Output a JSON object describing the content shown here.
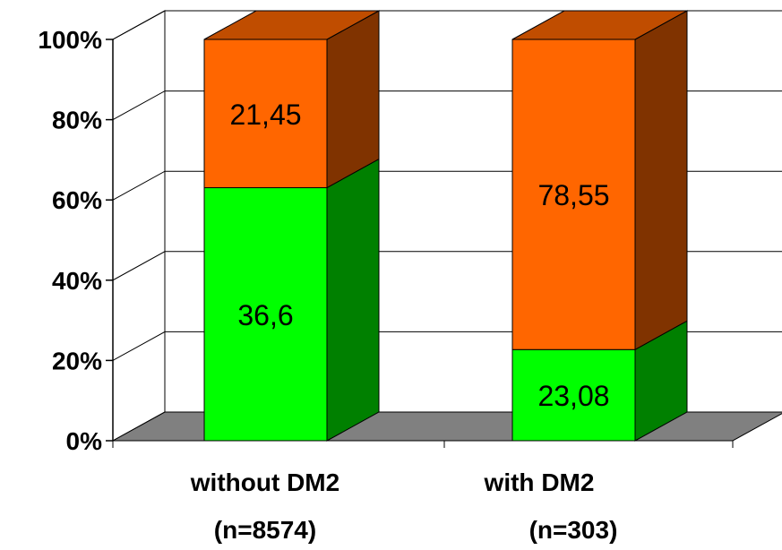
{
  "chart_data": {
    "type": "bar",
    "stacked": true,
    "percent_scale": true,
    "categories": [
      "without DM2",
      "with DM2"
    ],
    "category_subtitles": [
      "(n=8574)",
      "(n=303)"
    ],
    "series": [
      {
        "values": [
          36.6,
          23.08
        ],
        "labels": [
          "36,6",
          "23,08"
        ],
        "color": "#00FF00",
        "side_color": "#008000"
      },
      {
        "values": [
          21.45,
          78.55
        ],
        "labels": [
          "21,45",
          "78,55"
        ],
        "color": "#FF6600",
        "side_color": "#803300",
        "top_color": "#C04D00"
      }
    ],
    "ylim": [
      0,
      100
    ],
    "yticks": [
      "0%",
      "20%",
      "40%",
      "60%",
      "80%",
      "100%"
    ],
    "grid": true,
    "floor_color": "#808080"
  }
}
